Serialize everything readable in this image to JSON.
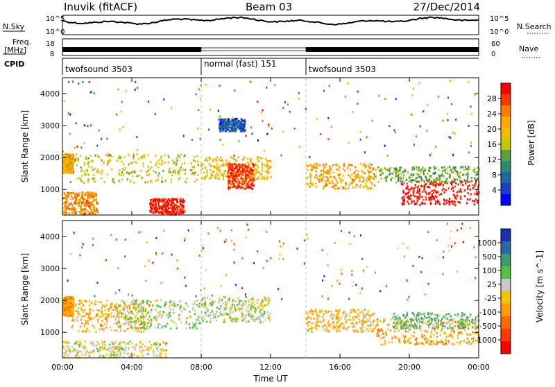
{
  "header": {
    "station": "Inuvik (fitACF)",
    "beam": "Beam 03",
    "date": "27/Dec/2014"
  },
  "strip_labels": {
    "nsky": "N.Sky",
    "nsearch": "N.Search",
    "freq": "Freq.",
    "freq_unit": "[MHz]",
    "cpid": "CPID",
    "nave": "Nave",
    "noise_ticks_left": [
      "10^5",
      "10^0"
    ],
    "noise_ticks_right": [
      "10^5",
      "10^0"
    ],
    "freq_ticks": [
      "18",
      "8"
    ],
    "nave_ticks": [
      "60",
      "0"
    ]
  },
  "cpid_segments": [
    {
      "label": "twofsound 3503",
      "start_h": 0,
      "end_h": 8
    },
    {
      "label": "normal (fast) 151",
      "start_h": 8,
      "end_h": 14
    },
    {
      "label": "twofsound 3503",
      "start_h": 14,
      "end_h": 24
    }
  ],
  "axes": {
    "xlabel": "Time UT",
    "x_ticks": [
      "00:00",
      "04:00",
      "08:00",
      "12:00",
      "16:00",
      "20:00",
      "00:00"
    ],
    "ylabel": "Slant Range [km]",
    "y_ticks": [
      "1000",
      "2000",
      "3000",
      "4000"
    ]
  },
  "power_colorbar": {
    "label": "Power [dB]",
    "ticks": [
      "28",
      "24",
      "20",
      "16",
      "12",
      "8",
      "4"
    ],
    "colors": [
      "#ff0000",
      "#ff3a00",
      "#ff7a00",
      "#ffa800",
      "#f0c000",
      "#c8c800",
      "#5aa03c",
      "#2f8a6a",
      "#1f6a9a",
      "#1a3fc8",
      "#0000ff"
    ]
  },
  "velocity_colorbar": {
    "label": "Velocity [m s^-1]",
    "ticks": [
      "1000",
      "500",
      "100",
      "25",
      "-25",
      "-100",
      "-500",
      "-1000"
    ],
    "colors": [
      "#1a2fb0",
      "#2a68a0",
      "#3a9a70",
      "#55c040",
      "#c8c8c8",
      "#ffc000",
      "#ff9a00",
      "#ff6a00",
      "#ff3a00",
      "#ff0000"
    ]
  },
  "chart_data": [
    {
      "type": "heatmap",
      "name": "power",
      "x_range_h": [
        0,
        24
      ],
      "ylim": [
        200,
        4500
      ],
      "clim": [
        0,
        30
      ],
      "regions": [
        {
          "t0": 0.0,
          "t1": 0.6,
          "r0": 1500,
          "r1": 2100,
          "value": 20
        },
        {
          "t0": 0.4,
          "t1": 8.0,
          "r0": 1200,
          "r1": 2100,
          "value": 16
        },
        {
          "t0": 0.0,
          "t1": 2.0,
          "r0": 200,
          "r1": 900,
          "value": 22
        },
        {
          "t0": 5.0,
          "t1": 7.0,
          "r0": 200,
          "r1": 700,
          "value": 28
        },
        {
          "t0": 8.0,
          "t1": 12.0,
          "r0": 1300,
          "r1": 2000,
          "value": 18
        },
        {
          "t0": 9.5,
          "t1": 11.0,
          "r0": 1000,
          "r1": 1800,
          "value": 26
        },
        {
          "t0": 9.0,
          "t1": 10.5,
          "r0": 2800,
          "r1": 3200,
          "value": 6
        },
        {
          "t0": 14.0,
          "t1": 18.0,
          "r0": 1000,
          "r1": 1800,
          "value": 20
        },
        {
          "t0": 19.5,
          "t1": 24.0,
          "r0": 500,
          "r1": 1300,
          "value": 29
        },
        {
          "t0": 18.0,
          "t1": 24.0,
          "r0": 1200,
          "r1": 1700,
          "value": 12
        }
      ]
    },
    {
      "type": "heatmap",
      "name": "velocity",
      "x_range_h": [
        0,
        24
      ],
      "ylim": [
        200,
        4500
      ],
      "clim": [
        -1000,
        1000
      ],
      "regions": [
        {
          "t0": 0.0,
          "t1": 0.6,
          "r0": 1500,
          "r1": 2100,
          "value": -300
        },
        {
          "t0": 0.5,
          "t1": 5.0,
          "r0": 1000,
          "r1": 2000,
          "value": -200
        },
        {
          "t0": 3.0,
          "t1": 8.0,
          "r0": 1100,
          "r1": 2000,
          "value": 150
        },
        {
          "t0": 8.0,
          "t1": 12.0,
          "r0": 1300,
          "r1": 2100,
          "value": 120
        },
        {
          "t0": 0.0,
          "t1": 6.0,
          "r0": 200,
          "r1": 700,
          "value": 60
        },
        {
          "t0": 14.0,
          "t1": 18.0,
          "r0": 1000,
          "r1": 1700,
          "value": -150
        },
        {
          "t0": 18.0,
          "t1": 24.0,
          "r0": 600,
          "r1": 1400,
          "value": -250
        },
        {
          "t0": 19.0,
          "t1": 24.0,
          "r0": 1100,
          "r1": 1600,
          "value": 300
        }
      ]
    }
  ]
}
